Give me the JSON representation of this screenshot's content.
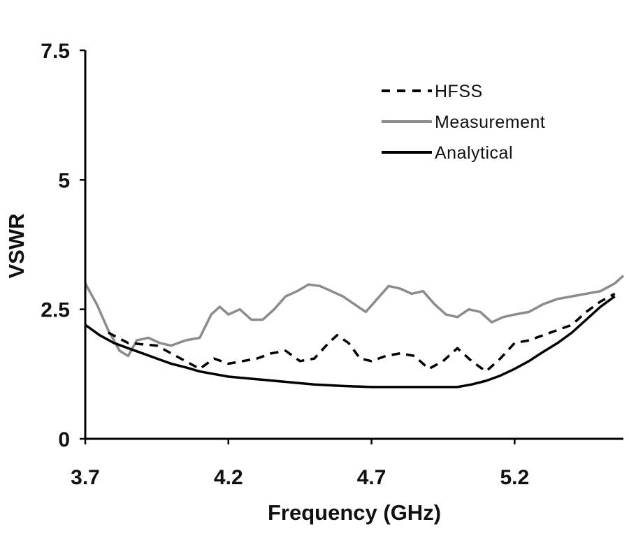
{
  "chart_data": {
    "type": "line",
    "xlabel": "Frequency (GHz)",
    "ylabel": "VSWR",
    "xlim": [
      3.7,
      5.58
    ],
    "ylim": [
      0,
      7.5
    ],
    "x_ticks": [
      "3.7",
      "4.2",
      "4.7",
      "5.2"
    ],
    "y_ticks": [
      "0",
      "2.5",
      "5",
      "7.5"
    ],
    "grid": false,
    "legend_position": "top-right",
    "series": [
      {
        "name": "HFSS",
        "color": "#000000",
        "style": "dashed",
        "x": [
          3.78,
          3.85,
          3.95,
          4.05,
          4.1,
          4.15,
          4.2,
          4.25,
          4.3,
          4.35,
          4.4,
          4.45,
          4.5,
          4.55,
          4.58,
          4.62,
          4.66,
          4.7,
          4.75,
          4.8,
          4.85,
          4.9,
          4.95,
          5.0,
          5.05,
          5.1,
          5.15,
          5.2,
          5.25,
          5.3,
          5.35,
          5.4,
          5.45,
          5.5,
          5.55
        ],
        "values": [
          2.05,
          1.85,
          1.8,
          1.5,
          1.35,
          1.55,
          1.45,
          1.5,
          1.55,
          1.65,
          1.7,
          1.5,
          1.55,
          1.85,
          2.0,
          1.85,
          1.55,
          1.5,
          1.6,
          1.65,
          1.6,
          1.35,
          1.5,
          1.75,
          1.5,
          1.3,
          1.55,
          1.85,
          1.9,
          2.0,
          2.1,
          2.2,
          2.45,
          2.65,
          2.8
        ]
      },
      {
        "name": "Measurement",
        "color": "#8c8c8c",
        "style": "solid",
        "x": [
          3.7,
          3.74,
          3.78,
          3.82,
          3.85,
          3.88,
          3.92,
          3.96,
          4.0,
          4.05,
          4.1,
          4.14,
          4.17,
          4.2,
          4.24,
          4.28,
          4.32,
          4.36,
          4.4,
          4.44,
          4.48,
          4.52,
          4.56,
          4.6,
          4.64,
          4.68,
          4.72,
          4.76,
          4.8,
          4.84,
          4.88,
          4.92,
          4.96,
          5.0,
          5.04,
          5.08,
          5.12,
          5.16,
          5.2,
          5.25,
          5.3,
          5.35,
          5.4,
          5.45,
          5.5,
          5.55,
          5.58
        ],
        "values": [
          3.0,
          2.6,
          2.1,
          1.7,
          1.6,
          1.9,
          1.95,
          1.85,
          1.8,
          1.9,
          1.95,
          2.4,
          2.55,
          2.4,
          2.5,
          2.3,
          2.3,
          2.5,
          2.75,
          2.85,
          2.98,
          2.95,
          2.85,
          2.75,
          2.6,
          2.45,
          2.7,
          2.95,
          2.9,
          2.8,
          2.85,
          2.6,
          2.4,
          2.35,
          2.5,
          2.45,
          2.25,
          2.35,
          2.4,
          2.45,
          2.6,
          2.7,
          2.75,
          2.8,
          2.85,
          3.0,
          3.15
        ]
      },
      {
        "name": "Analytical",
        "color": "#000000",
        "style": "solid",
        "x": [
          3.7,
          3.75,
          3.8,
          3.85,
          3.9,
          3.95,
          4.0,
          4.05,
          4.1,
          4.15,
          4.2,
          4.3,
          4.4,
          4.5,
          4.6,
          4.7,
          4.8,
          4.9,
          5.0,
          5.05,
          5.1,
          5.15,
          5.2,
          5.25,
          5.3,
          5.35,
          5.4,
          5.45,
          5.5,
          5.55
        ],
        "values": [
          2.2,
          2.0,
          1.85,
          1.75,
          1.65,
          1.55,
          1.45,
          1.38,
          1.3,
          1.25,
          1.2,
          1.15,
          1.1,
          1.05,
          1.02,
          1.0,
          1.0,
          1.0,
          1.0,
          1.05,
          1.12,
          1.22,
          1.35,
          1.5,
          1.68,
          1.85,
          2.05,
          2.3,
          2.55,
          2.75
        ]
      }
    ]
  }
}
